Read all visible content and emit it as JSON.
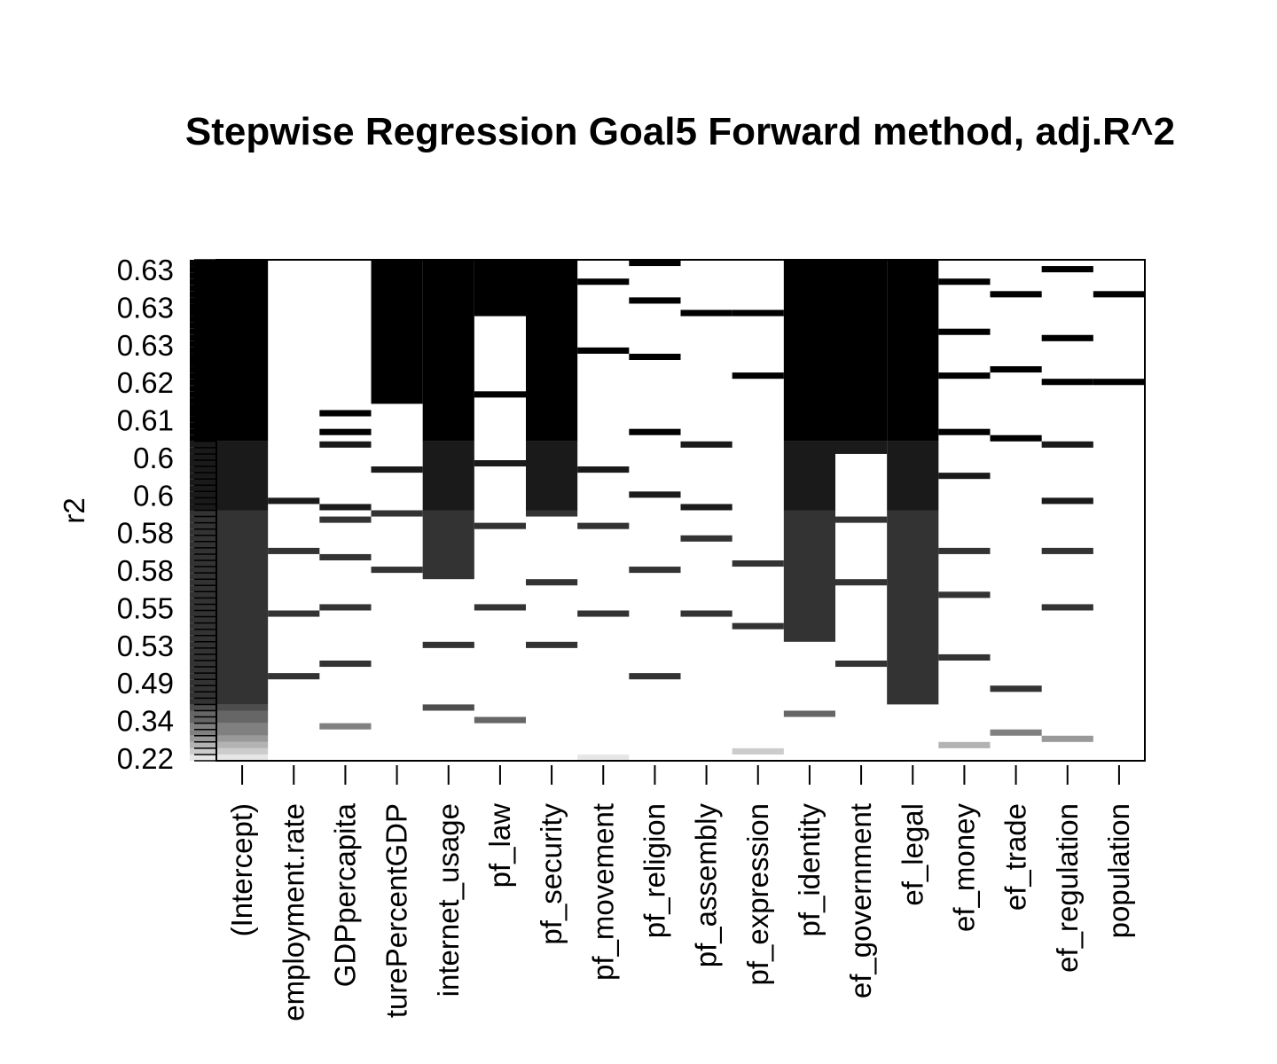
{
  "chart_data": {
    "type": "heatmap",
    "title": "Stepwise Regression Goal5 Forward method, adj.R^2",
    "ylabel": "r2",
    "xlabel": "",
    "variables": [
      "(Intercept)",
      "employment.rate",
      "GDPpercapita",
      "turePercentGDP",
      "internet_usage",
      "pf_law",
      "pf_security",
      "pf_movement",
      "pf_religion",
      "pf_assembly",
      "pf_expression",
      "pf_identity",
      "ef_government",
      "ef_legal",
      "ef_money",
      "ef_trade",
      "ef_regulation",
      "population"
    ],
    "y_tick_labels": [
      "0.22",
      "0.34",
      "0.49",
      "0.53",
      "0.55",
      "0.58",
      "0.58",
      "0.6",
      "0.6",
      "0.61",
      "0.62",
      "0.63",
      "0.63",
      "0.63"
    ],
    "n_models": 80,
    "shade_colors": [
      "#000000",
      "#1a1a1a",
      "#333333",
      "#4d4d4d",
      "#666666",
      "#808080",
      "#999999",
      "#b3b3b3",
      "#cccccc",
      "#e6e6e6"
    ],
    "included_models": [
      [
        [
          0,
          79
        ]
      ],
      [
        [
          13,
          13
        ],
        [
          23,
          23
        ],
        [
          33,
          33
        ],
        [
          41,
          41
        ]
      ],
      [
        [
          5,
          5
        ],
        [
          15,
          15
        ],
        [
          24,
          24
        ],
        [
          32,
          32
        ],
        [
          38,
          38
        ],
        [
          40,
          40
        ],
        [
          50,
          50
        ],
        [
          52,
          52
        ],
        [
          55,
          55
        ]
      ],
      [
        [
          30,
          30
        ],
        [
          39,
          39
        ],
        [
          46,
          46
        ],
        [
          57,
          79
        ]
      ],
      [
        [
          8,
          8
        ],
        [
          18,
          18
        ],
        [
          29,
          79
        ]
      ],
      [
        [
          6,
          6
        ],
        [
          24,
          24
        ],
        [
          37,
          37
        ],
        [
          47,
          47
        ],
        [
          58,
          58
        ],
        [
          71,
          79
        ]
      ],
      [
        [
          18,
          18
        ],
        [
          28,
          28
        ],
        [
          39,
          79
        ]
      ],
      [
        [
          0,
          0
        ],
        [
          23,
          23
        ],
        [
          37,
          37
        ],
        [
          46,
          46
        ],
        [
          65,
          65
        ],
        [
          76,
          76
        ]
      ],
      [
        [
          13,
          13
        ],
        [
          30,
          30
        ],
        [
          42,
          42
        ],
        [
          52,
          52
        ],
        [
          64,
          64
        ],
        [
          73,
          73
        ],
        [
          79,
          79
        ]
      ],
      [
        [
          23,
          23
        ],
        [
          35,
          35
        ],
        [
          40,
          40
        ],
        [
          50,
          50
        ],
        [
          71,
          71
        ]
      ],
      [
        [
          1,
          1
        ],
        [
          21,
          21
        ],
        [
          31,
          31
        ],
        [
          61,
          61
        ],
        [
          71,
          71
        ]
      ],
      [
        [
          7,
          7
        ],
        [
          19,
          79
        ]
      ],
      [
        [
          15,
          15
        ],
        [
          28,
          28
        ],
        [
          38,
          38
        ],
        [
          49,
          79
        ]
      ],
      [
        [
          9,
          79
        ]
      ],
      [
        [
          2,
          2
        ],
        [
          16,
          16
        ],
        [
          26,
          26
        ],
        [
          33,
          33
        ],
        [
          45,
          45
        ],
        [
          52,
          52
        ],
        [
          61,
          61
        ],
        [
          68,
          68
        ],
        [
          76,
          76
        ]
      ],
      [
        [
          4,
          4
        ],
        [
          11,
          11
        ],
        [
          51,
          51
        ],
        [
          62,
          62
        ],
        [
          74,
          74
        ]
      ],
      [
        [
          3,
          3
        ],
        [
          24,
          24
        ],
        [
          33,
          33
        ],
        [
          41,
          41
        ],
        [
          50,
          50
        ],
        [
          60,
          60
        ],
        [
          67,
          67
        ],
        [
          78,
          78
        ]
      ],
      [
        [
          60,
          60
        ],
        [
          74,
          74
        ]
      ]
    ]
  }
}
